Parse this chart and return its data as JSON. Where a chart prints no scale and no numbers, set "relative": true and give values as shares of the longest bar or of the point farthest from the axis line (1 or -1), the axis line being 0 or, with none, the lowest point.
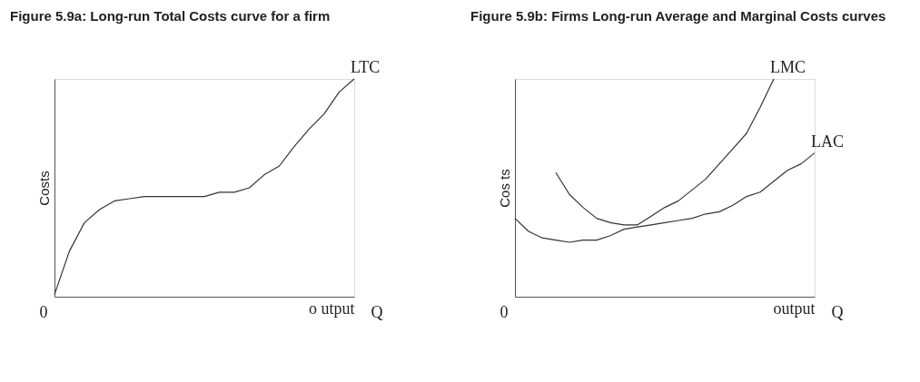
{
  "chart_data": [
    {
      "type": "line",
      "title": "Figure 5.9a: Long-run Total Costs curve for a firm",
      "ylabel": "Costs",
      "xlabel": "o utput",
      "relative": true,
      "grid": false,
      "categories": [
        null,
        null,
        null,
        null,
        null,
        null,
        null,
        null,
        null,
        null,
        null,
        null,
        null,
        null,
        null,
        null,
        null,
        null,
        null,
        null,
        null
      ],
      "series": [
        {
          "name": "LTC",
          "color": "#333333",
          "values": [
            0.01,
            0.21,
            0.34,
            0.4,
            0.44,
            0.45,
            0.46,
            0.46,
            0.46,
            0.46,
            0.46,
            0.48,
            0.48,
            0.5,
            0.56,
            0.6,
            0.69,
            0.77,
            0.84,
            0.94,
            1.0
          ]
        }
      ],
      "annotations": [
        "0",
        "Q"
      ]
    },
    {
      "type": "line",
      "title": "Figure 5.9b: Firms Long-run Average and Marginal Costs curves",
      "ylabel": "Cos ts",
      "xlabel": "output",
      "relative": true,
      "grid": false,
      "categories": [
        null,
        null,
        null,
        null,
        null,
        null,
        null,
        null,
        null,
        null,
        null,
        null,
        null,
        null,
        null,
        null,
        null,
        null,
        null,
        null,
        null,
        null,
        null
      ],
      "series": [
        {
          "name": "LMC",
          "color": "#333333",
          "values": [
            null,
            null,
            null,
            0.57,
            0.47,
            0.41,
            0.36,
            0.34,
            0.33,
            0.33,
            0.37,
            0.41,
            0.44,
            0.49,
            0.54,
            0.61,
            0.68,
            0.75,
            0.87,
            1.0,
            null,
            null,
            null
          ]
        },
        {
          "name": "LAC",
          "color": "#333333",
          "values": [
            0.36,
            0.3,
            0.27,
            0.26,
            0.25,
            0.26,
            0.26,
            0.28,
            0.31,
            0.32,
            0.33,
            0.34,
            0.35,
            0.36,
            0.38,
            0.39,
            0.42,
            0.46,
            0.48,
            0.53,
            0.58,
            0.61,
            0.66
          ]
        }
      ],
      "annotations": [
        "0",
        "Q"
      ]
    }
  ]
}
